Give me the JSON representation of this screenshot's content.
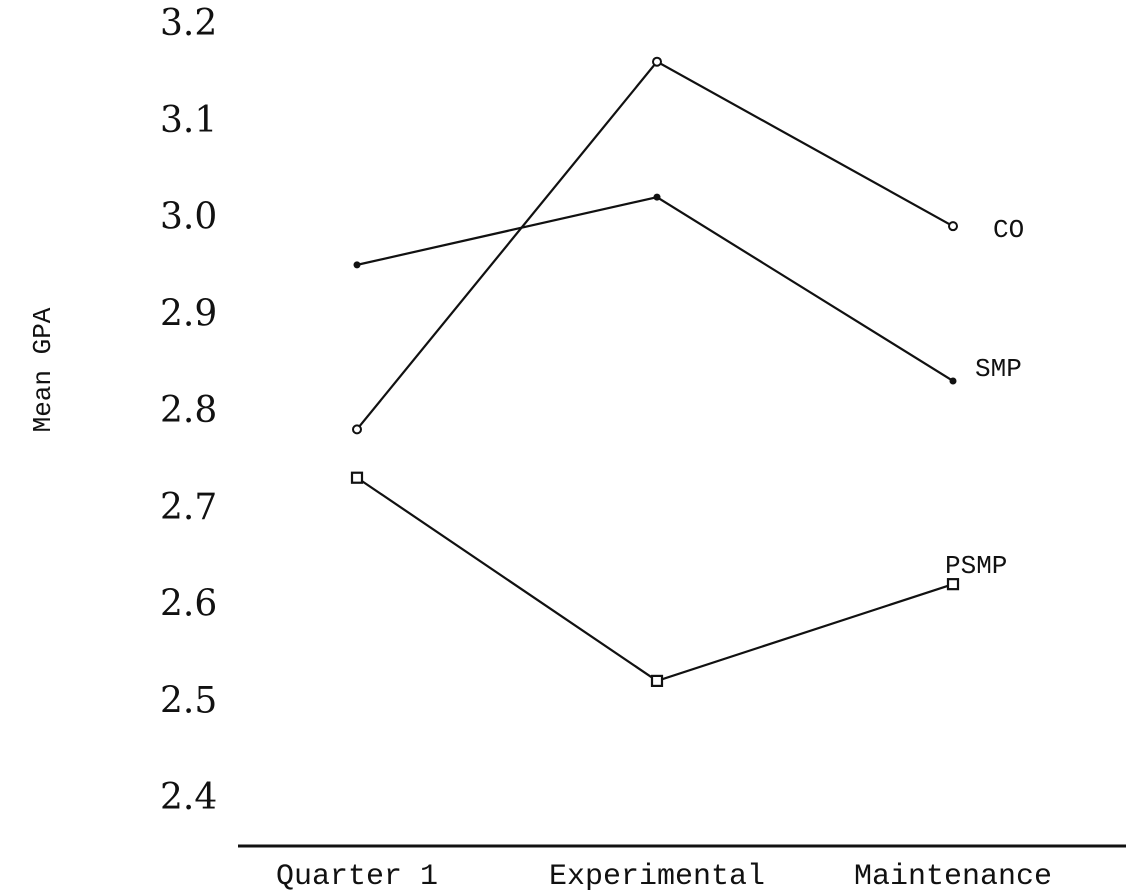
{
  "chart_data": {
    "type": "line",
    "ylabel": "Mean GPA",
    "xlabel": "",
    "categories": [
      "Quarter 1",
      "Experimental",
      "Maintenance"
    ],
    "y_tick_labels": [
      "3.2",
      "3.1",
      "3.0",
      "2.9",
      "2.8",
      "2.7",
      "2.6",
      "2.5",
      "2.4"
    ],
    "y_tick_values": [
      3.2,
      3.1,
      3.0,
      2.9,
      2.8,
      2.7,
      2.6,
      2.5,
      2.4
    ],
    "ylim": [
      2.4,
      3.2
    ],
    "grid": false,
    "legend": "none (series labelled at right end of lines)",
    "series": [
      {
        "name": "CO",
        "marker": "open-circle",
        "values": [
          2.78,
          3.16,
          2.99
        ]
      },
      {
        "name": "SMP",
        "marker": "filled-dot",
        "values": [
          2.95,
          3.02,
          2.83
        ]
      },
      {
        "name": "PSMP",
        "marker": "open-square",
        "values": [
          2.73,
          2.52,
          2.62
        ]
      }
    ]
  }
}
